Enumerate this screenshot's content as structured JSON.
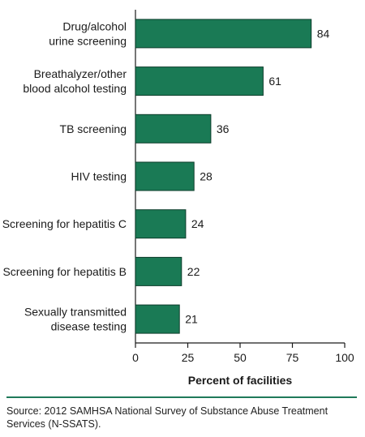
{
  "chart_data": {
    "type": "bar",
    "orientation": "horizontal",
    "categories": [
      [
        "Drug/alcohol",
        "urine screening"
      ],
      [
        "Breathalyzer/other",
        "blood alcohol testing"
      ],
      [
        "TB screening"
      ],
      [
        "HIV testing"
      ],
      [
        "Screening for hepatitis C"
      ],
      [
        "Screening for hepatitis B"
      ],
      [
        "Sexually transmitted",
        "disease testing"
      ]
    ],
    "values": [
      84,
      61,
      36,
      28,
      24,
      22,
      21
    ],
    "value_labels": [
      "84",
      "61",
      "36",
      "28",
      "24",
      "22",
      "21"
    ],
    "xlabel": "Percent of facilities",
    "xlim": [
      0,
      100
    ],
    "xticks": [
      0,
      25,
      50,
      75,
      100
    ],
    "xtick_labels": [
      "0",
      "25",
      "50",
      "75",
      "100"
    ],
    "grid": false,
    "bar_color": "#1a7a55",
    "bar_outline_color": "#0d3d2b"
  },
  "source": "Source: 2012 SAMHSA National Survey of Substance Abuse Treatment Services (N-SSATS).",
  "colors": {
    "divider": "#1f7a5a"
  }
}
